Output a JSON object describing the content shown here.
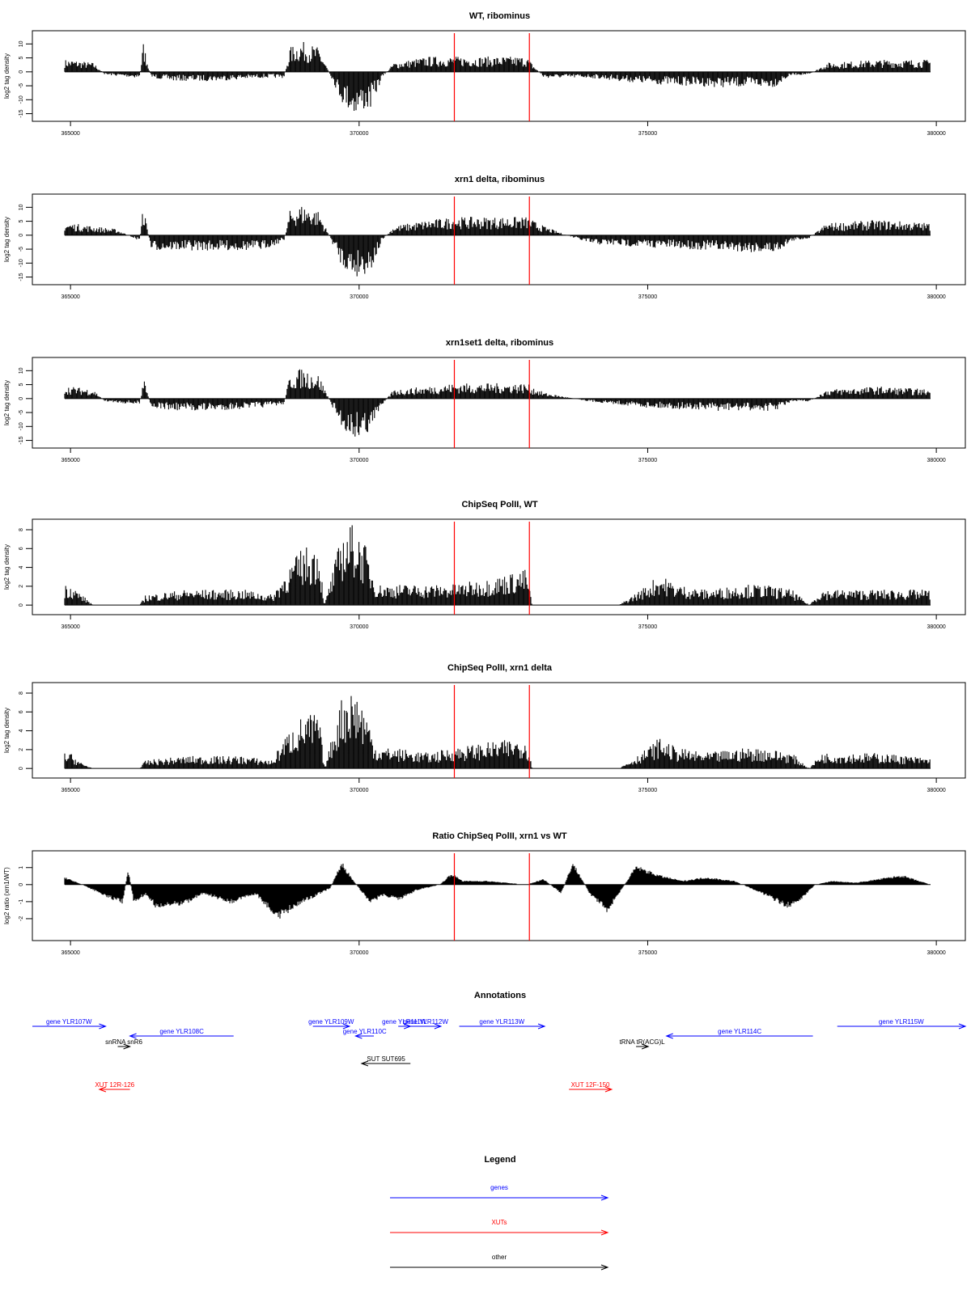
{
  "colors": {
    "gene": "#0000ff",
    "xut": "#ff0000",
    "other": "#000000",
    "marker": "#ff0000",
    "trace": "#000000"
  },
  "chart_data": [
    {
      "type": "bar",
      "title": "WT, ribominus",
      "ylabel": "log2 tag density",
      "xlim": [
        364900,
        379900
      ],
      "ylim": [
        -16,
        13
      ],
      "yticks": [
        10,
        5,
        0,
        -5,
        -10,
        -15
      ],
      "xticks": [
        365000,
        370000,
        375000,
        380000
      ],
      "markers": [
        371650,
        372950
      ],
      "profile_x": [
        364900,
        365000,
        365400,
        365600,
        366200,
        366260,
        366400,
        366800,
        367500,
        368300,
        368700,
        368800,
        369000,
        369300,
        369700,
        369900,
        370200,
        370400,
        370600,
        371200,
        371650,
        372300,
        372900,
        373200,
        374000,
        375000,
        376200,
        377200,
        377500,
        377800,
        378100,
        379000,
        379900
      ],
      "profile_y": [
        4,
        4,
        3,
        -1,
        -2,
        10,
        -2,
        -3,
        -3,
        -2,
        -2,
        8,
        10,
        8,
        -10,
        -14,
        -12,
        -2,
        3,
        5,
        5,
        5,
        5,
        -2,
        -2,
        -4,
        -5,
        -5,
        -1,
        -1,
        3,
        4,
        4
      ]
    },
    {
      "type": "bar",
      "title": "xrn1 delta, ribominus",
      "ylabel": "log2 tag density",
      "xlim": [
        364900,
        379900
      ],
      "ylim": [
        -16,
        13
      ],
      "yticks": [
        10,
        5,
        0,
        -5,
        -10,
        -15
      ],
      "xticks": [
        365000,
        370000,
        375000,
        380000
      ],
      "markers": [
        371650,
        372950
      ],
      "profile_x": [
        364900,
        365000,
        365400,
        365800,
        366200,
        366260,
        366400,
        366800,
        367500,
        368300,
        368700,
        368800,
        369000,
        369300,
        369700,
        369900,
        370200,
        370400,
        370600,
        371200,
        371650,
        372300,
        372900,
        373200,
        374000,
        375000,
        376200,
        377200,
        377500,
        377800,
        378100,
        379000,
        379900
      ],
      "profile_y": [
        4,
        4,
        3,
        2,
        -2,
        10,
        -5,
        -5,
        -5,
        -5,
        -2,
        8,
        10,
        8,
        -10,
        -14,
        -12,
        -2,
        3,
        5,
        6,
        6,
        6,
        3,
        -3,
        -4,
        -5,
        -6,
        -2,
        -1,
        4,
        5,
        4
      ]
    },
    {
      "type": "bar",
      "title": "xrn1set1 delta, ribominus",
      "ylabel": "log2 tag density",
      "xlim": [
        364900,
        379900
      ],
      "ylim": [
        -16,
        13
      ],
      "yticks": [
        10,
        5,
        0,
        -5,
        -10,
        -15
      ],
      "xticks": [
        365000,
        370000,
        375000,
        380000
      ],
      "markers": [
        371650,
        372950
      ],
      "profile_x": [
        364900,
        365000,
        365400,
        365600,
        366200,
        366260,
        366400,
        366800,
        367500,
        368300,
        368700,
        368800,
        369000,
        369300,
        369700,
        369900,
        370200,
        370400,
        370600,
        371200,
        371650,
        372300,
        372900,
        373200,
        374000,
        375000,
        376200,
        377200,
        377500,
        377800,
        378100,
        379000,
        379900
      ],
      "profile_y": [
        4,
        4,
        3,
        -1,
        -2,
        7,
        -3,
        -4,
        -4,
        -3,
        -2,
        8,
        10,
        8,
        -10,
        -13,
        -11,
        -2,
        3,
        4,
        5,
        5,
        5,
        2,
        -1,
        -3,
        -4,
        -4,
        -1,
        -1,
        3,
        4,
        3
      ]
    },
    {
      "type": "bar",
      "title": "ChipSeq PolII, WT",
      "ylabel": "log2 tag density",
      "xlim": [
        364900,
        379900
      ],
      "ylim": [
        -0.5,
        8.6
      ],
      "yticks": [
        0,
        2,
        4,
        6,
        8
      ],
      "xticks": [
        365000,
        370000,
        375000,
        380000
      ],
      "markers": [
        371650,
        372950
      ],
      "profile_x": [
        364900,
        365000,
        365200,
        365400,
        365500,
        366200,
        366300,
        367000,
        368000,
        368500,
        368700,
        369000,
        369300,
        369400,
        369700,
        369900,
        370100,
        370300,
        370600,
        371200,
        371600,
        372200,
        372900,
        373000,
        373600,
        374500,
        375000,
        375200,
        375500,
        376000,
        376700,
        377000,
        377500,
        377800,
        378000,
        379000,
        379900
      ],
      "profile_y": [
        2,
        2,
        1,
        0,
        0,
        0,
        1,
        1.5,
        1.5,
        1,
        3,
        5.5,
        6,
        0,
        7,
        8,
        6,
        2,
        2,
        2,
        2,
        2.5,
        3.5,
        0,
        0,
        0,
        2,
        3,
        2,
        1.5,
        2,
        2,
        1.5,
        0,
        1.5,
        1.5,
        1.5
      ]
    },
    {
      "type": "bar",
      "title": "ChipSeq PolII, xrn1 delta",
      "ylabel": "log2 tag density",
      "xlim": [
        364900,
        379900
      ],
      "ylim": [
        -0.5,
        8.6
      ],
      "yticks": [
        0,
        2,
        4,
        6,
        8
      ],
      "xticks": [
        365000,
        370000,
        375000,
        380000
      ],
      "markers": [
        371650,
        372950
      ],
      "profile_x": [
        364900,
        365000,
        365200,
        365400,
        365500,
        366200,
        366300,
        367000,
        368000,
        368500,
        368700,
        369000,
        369300,
        369400,
        369700,
        369900,
        370100,
        370300,
        370600,
        371200,
        371600,
        372200,
        372900,
        373000,
        373600,
        374500,
        375000,
        375200,
        375500,
        376000,
        376700,
        377000,
        377500,
        377800,
        378000,
        379000,
        379900
      ],
      "profile_y": [
        1.5,
        1.5,
        0.5,
        0,
        0,
        0,
        0.8,
        1.2,
        1.2,
        0.8,
        3,
        5,
        5.5,
        0,
        7,
        8,
        6,
        2,
        2,
        1.5,
        2,
        2.5,
        3,
        0,
        0,
        0,
        2,
        3,
        2,
        1.5,
        2,
        2,
        1.5,
        0,
        1.5,
        1.5,
        1
      ]
    },
    {
      "type": "area",
      "title": "Ratio ChipSeq PolII, xrn1 vs WT",
      "ylabel": "log2 ratio (xrn1/WT)",
      "xlim": [
        364900,
        379900
      ],
      "ylim": [
        -3,
        1.7
      ],
      "yticks": [
        1,
        0,
        -1,
        -2
      ],
      "xticks": [
        365000,
        370000,
        375000,
        380000
      ],
      "markers": [
        371650,
        372950
      ],
      "profile_x": [
        364900,
        365200,
        365600,
        365900,
        366000,
        366100,
        366300,
        366500,
        367000,
        367300,
        367800,
        368200,
        368600,
        369000,
        369500,
        369700,
        369900,
        370200,
        370400,
        370700,
        371000,
        371400,
        371600,
        371800,
        372200,
        372900,
        373200,
        373500,
        373700,
        374000,
        374300,
        374500,
        374800,
        375200,
        375600,
        376000,
        376500,
        377000,
        377400,
        377600,
        377900,
        378200,
        378600,
        379000,
        379400,
        379900
      ],
      "profile_y": [
        0.4,
        0,
        -0.6,
        -1,
        0.8,
        -1,
        -0.5,
        -1.3,
        -1,
        -0.5,
        -1,
        -0.5,
        -1.8,
        -1,
        -0.2,
        1.2,
        0.2,
        -1,
        -0.6,
        -0.8,
        -0.3,
        0,
        0.6,
        0.2,
        0.2,
        0,
        0.3,
        -0.5,
        1.2,
        -0.5,
        -1.5,
        -0.5,
        1,
        0.5,
        0.2,
        0.4,
        0.2,
        -0.5,
        -1.2,
        -1,
        0,
        0.2,
        0.1,
        0.3,
        0.5,
        0
      ]
    }
  ],
  "annotations": {
    "title": "Annotations",
    "features": [
      {
        "label": "gene YLR107W",
        "kind": "gene",
        "start": 364600,
        "end": 365800,
        "row": 0
      },
      {
        "label": "gene YLR108C",
        "kind": "gene",
        "start": 366200,
        "end": 367900,
        "row": 1
      },
      {
        "label": "gene YLR109W",
        "kind": "gene",
        "start": 369200,
        "end": 369800,
        "row": 0
      },
      {
        "label": "gene YLR110C",
        "kind": "gene",
        "start": 369900,
        "end": 370200,
        "row": 1
      },
      {
        "label": "gene YLR111W",
        "kind": "gene",
        "start": 370600,
        "end": 370800,
        "row": 0
      },
      {
        "label": "gene YLR112W",
        "kind": "gene",
        "start": 370800,
        "end": 371300,
        "row": 0
      },
      {
        "label": "gene YLR113W",
        "kind": "gene",
        "start": 371600,
        "end": 373000,
        "row": 0
      },
      {
        "label": "gene YLR114C",
        "kind": "gene",
        "start": 375000,
        "end": 377400,
        "row": 1
      },
      {
        "label": "gene YLR115W",
        "kind": "gene",
        "start": 377800,
        "end": 379900,
        "row": 0
      },
      {
        "label": "snRNA snR6",
        "kind": "other",
        "start": 366000,
        "end": 366200,
        "row": 2
      },
      {
        "label": "tRNA tR(ACG)L",
        "kind": "other",
        "start": 374500,
        "end": 374700,
        "row": 2
      },
      {
        "label": "SUT SUT695",
        "kind": "other",
        "start": 370000,
        "end": 370800,
        "row": 3
      },
      {
        "label": "XUT 12R-126",
        "kind": "xut",
        "start": 365700,
        "end": 366200,
        "row": 4
      },
      {
        "label": "XUT 12F-150",
        "kind": "xut",
        "start": 373400,
        "end": 374100,
        "row": 4
      }
    ]
  },
  "legend": {
    "title": "Legend",
    "entries": [
      {
        "label": "genes",
        "kind": "gene"
      },
      {
        "label": "XUTs",
        "kind": "xut"
      },
      {
        "label": "other",
        "kind": "other"
      }
    ]
  }
}
